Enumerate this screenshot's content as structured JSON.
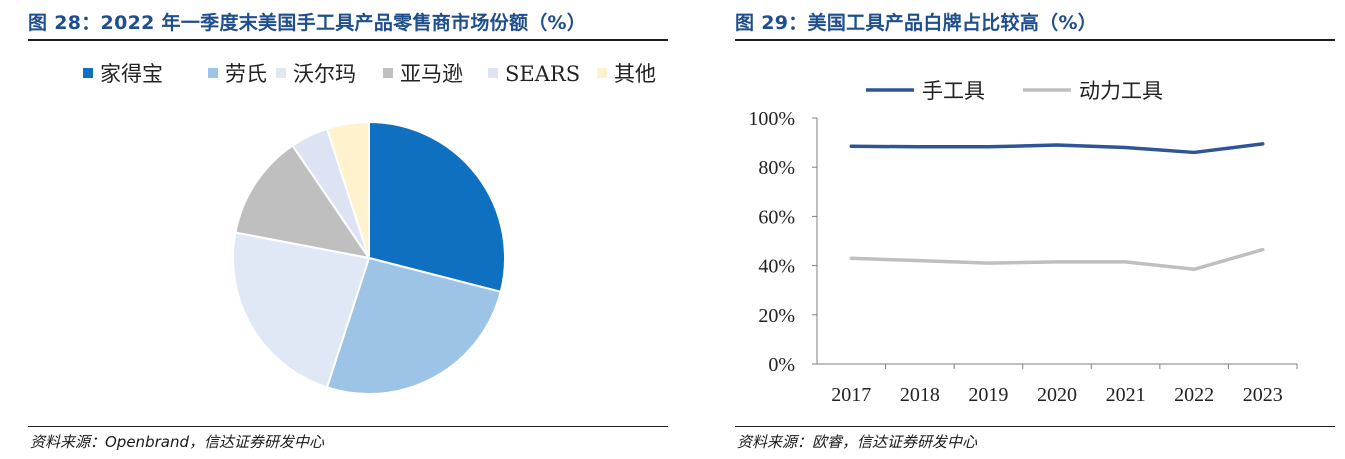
{
  "left": {
    "title": "图 28：2022 年一季度末美国手工具产品零售商市场份额（%）",
    "source": "资料来源：Openbrand，信达证券研发中心"
  },
  "right": {
    "title": "图 29：美国工具产品白牌占比较高（%）",
    "source": "资料来源：欧睿，信达证券研发中心"
  },
  "chart_data": [
    {
      "type": "pie",
      "title": "图 28：2022 年一季度末美国手工具产品零售商市场份额（%）",
      "legend_position": "top",
      "slices": [
        {
          "label": "家得宝",
          "value": 29.0,
          "color": "#0f6fc1"
        },
        {
          "label": "劳氏",
          "value": 26.0,
          "color": "#9dc3e6"
        },
        {
          "label": "沃尔玛",
          "value": 23.0,
          "color": "#dfe8f4"
        },
        {
          "label": "亚马逊",
          "value": 12.5,
          "color": "#bfbfbf"
        },
        {
          "label": "SEARS",
          "value": 4.5,
          "color": "#dde3f3"
        },
        {
          "label": "其他",
          "value": 5.0,
          "color": "#fff2cc"
        }
      ]
    },
    {
      "type": "line",
      "title": "图 29：美国工具产品白牌占比较高（%）",
      "legend_position": "top",
      "x": [
        "2017",
        "2018",
        "2019",
        "2020",
        "2021",
        "2022",
        "2023"
      ],
      "ylim": [
        0,
        100
      ],
      "yticks": [
        "0%",
        "20%",
        "40%",
        "60%",
        "80%",
        "100%"
      ],
      "grid": false,
      "series": [
        {
          "name": "手工具",
          "values": [
            88.5,
            88.3,
            88.3,
            89.0,
            88.0,
            86.0,
            89.5
          ],
          "color": "#2f5597"
        },
        {
          "name": "动力工具",
          "values": [
            43.0,
            42.0,
            41.0,
            41.5,
            41.5,
            38.5,
            46.5
          ],
          "color": "#bfbfbf"
        }
      ]
    }
  ]
}
